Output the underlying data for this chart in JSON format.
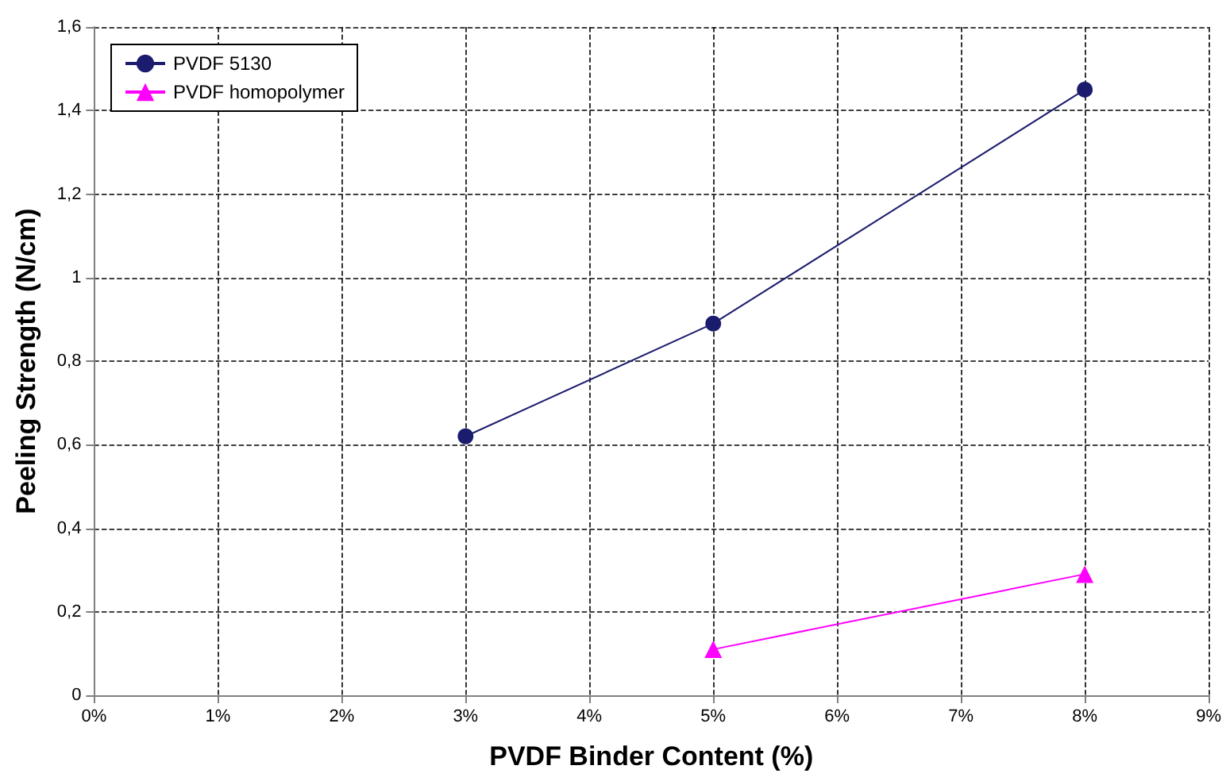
{
  "chart_data": {
    "type": "line",
    "xlabel": "PVDF Binder Content (%)",
    "ylabel": "Peeling Strength (N/cm)",
    "series": [
      {
        "name": "PVDF 5130",
        "color": "#1c1c6e",
        "marker": "circle",
        "x": [
          3,
          5,
          8
        ],
        "values": [
          0.62,
          0.89,
          1.45
        ]
      },
      {
        "name": "PVDF homopolymer",
        "color": "#ff00ff",
        "marker": "triangle",
        "x": [
          5,
          8
        ],
        "values": [
          0.11,
          0.29
        ]
      }
    ],
    "xlim": [
      0,
      9
    ],
    "xticks": [
      {
        "value": 0,
        "label": "0%"
      },
      {
        "value": 1,
        "label": "1%"
      },
      {
        "value": 2,
        "label": "2%"
      },
      {
        "value": 3,
        "label": "3%"
      },
      {
        "value": 4,
        "label": "4%"
      },
      {
        "value": 5,
        "label": "5%"
      },
      {
        "value": 6,
        "label": "6%"
      },
      {
        "value": 7,
        "label": "7%"
      },
      {
        "value": 8,
        "label": "8%"
      },
      {
        "value": 9,
        "label": "9%"
      }
    ],
    "ylim": [
      0,
      1.6
    ],
    "yticks": [
      {
        "value": 0,
        "label": "0"
      },
      {
        "value": 0.2,
        "label": "0,2"
      },
      {
        "value": 0.4,
        "label": "0,4"
      },
      {
        "value": 0.6,
        "label": "0,6"
      },
      {
        "value": 0.8,
        "label": "0,8"
      },
      {
        "value": 1,
        "label": "1"
      },
      {
        "value": 1.2,
        "label": "1,2"
      },
      {
        "value": 1.4,
        "label": "1,4"
      },
      {
        "value": 1.6,
        "label": "1,6"
      }
    ],
    "grid": true,
    "legend": "top left",
    "line_style": "solid"
  }
}
